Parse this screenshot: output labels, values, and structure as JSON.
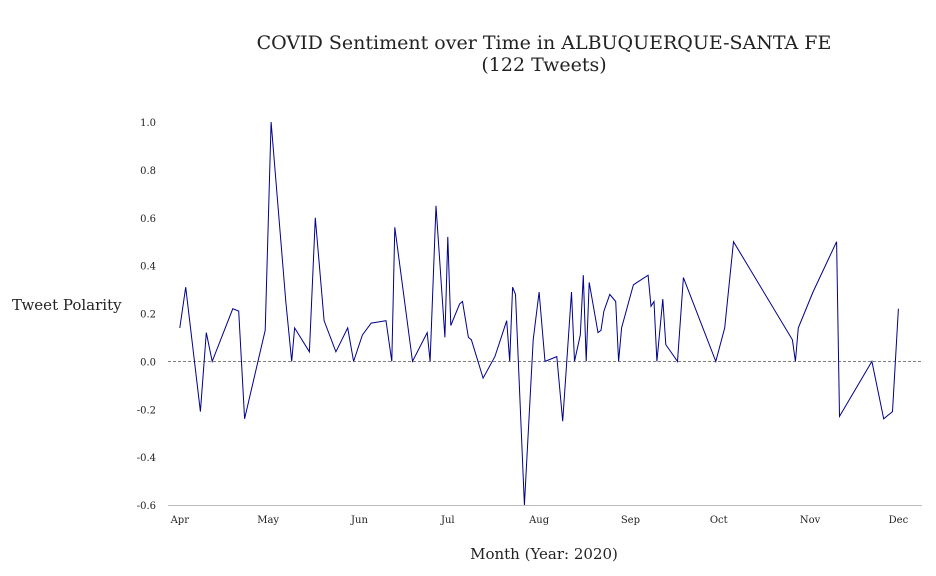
{
  "chart_data": {
    "type": "line",
    "title_line1": "COVID Sentiment over Time in ALBUQUERQUE-SANTA FE",
    "title_line2": "(122 Tweets)",
    "xlabel": "Month (Year: 2020)",
    "ylabel": "Tweet Polarity",
    "ylim": [
      -0.6,
      1.0
    ],
    "yticks": [
      "-0.6",
      "-0.4",
      "-0.2",
      "0.0",
      "0.2",
      "0.4",
      "0.6",
      "0.8",
      "1.0"
    ],
    "xticks": [
      "Apr",
      "May",
      "Jun",
      "Jul",
      "Aug",
      "Sep",
      "Oct",
      "Nov",
      "Dec"
    ],
    "xlim": [
      "2020-03-28",
      "2020-12-09"
    ],
    "zero_line": true,
    "line_color": "#00008b",
    "series": [
      {
        "points": [
          [
            "2020-04-01",
            0.14
          ],
          [
            "2020-04-03",
            0.31
          ],
          [
            "2020-04-08",
            -0.21
          ],
          [
            "2020-04-10",
            0.12
          ],
          [
            "2020-04-12",
            0.0
          ],
          [
            "2020-04-19",
            0.22
          ],
          [
            "2020-04-21",
            0.21
          ],
          [
            "2020-04-23",
            -0.24
          ],
          [
            "2020-04-30",
            0.13
          ],
          [
            "2020-05-02",
            1.0
          ],
          [
            "2020-05-07",
            0.25
          ],
          [
            "2020-05-09",
            0.0
          ],
          [
            "2020-05-10",
            0.14
          ],
          [
            "2020-05-15",
            0.04
          ],
          [
            "2020-05-17",
            0.6
          ],
          [
            "2020-05-20",
            0.17
          ],
          [
            "2020-05-24",
            0.04
          ],
          [
            "2020-05-28",
            0.14
          ],
          [
            "2020-05-30",
            0.0
          ],
          [
            "2020-06-02",
            0.11
          ],
          [
            "2020-06-05",
            0.16
          ],
          [
            "2020-06-10",
            0.17
          ],
          [
            "2020-06-12",
            0.0
          ],
          [
            "2020-06-13",
            0.56
          ],
          [
            "2020-06-19",
            0.0
          ],
          [
            "2020-06-24",
            0.12
          ],
          [
            "2020-06-25",
            0.0
          ],
          [
            "2020-06-27",
            0.65
          ],
          [
            "2020-06-30",
            0.1
          ],
          [
            "2020-07-01",
            0.52
          ],
          [
            "2020-07-02",
            0.15
          ],
          [
            "2020-07-05",
            0.24
          ],
          [
            "2020-07-06",
            0.25
          ],
          [
            "2020-07-08",
            0.1
          ],
          [
            "2020-07-09",
            0.09
          ],
          [
            "2020-07-13",
            -0.07
          ],
          [
            "2020-07-17",
            0.02
          ],
          [
            "2020-07-21",
            0.17
          ],
          [
            "2020-07-22",
            0.0
          ],
          [
            "2020-07-23",
            0.31
          ],
          [
            "2020-07-24",
            0.28
          ],
          [
            "2020-07-27",
            -0.6
          ],
          [
            "2020-07-30",
            0.09
          ],
          [
            "2020-08-01",
            0.29
          ],
          [
            "2020-08-03",
            0.0
          ],
          [
            "2020-08-07",
            0.02
          ],
          [
            "2020-08-09",
            -0.25
          ],
          [
            "2020-08-12",
            0.29
          ],
          [
            "2020-08-13",
            0.0
          ],
          [
            "2020-08-15",
            0.11
          ],
          [
            "2020-08-16",
            0.36
          ],
          [
            "2020-08-17",
            0.0
          ],
          [
            "2020-08-18",
            0.33
          ],
          [
            "2020-08-21",
            0.12
          ],
          [
            "2020-08-22",
            0.13
          ],
          [
            "2020-08-23",
            0.21
          ],
          [
            "2020-08-25",
            0.28
          ],
          [
            "2020-08-27",
            0.25
          ],
          [
            "2020-08-28",
            0.0
          ],
          [
            "2020-08-29",
            0.14
          ],
          [
            "2020-09-02",
            0.32
          ],
          [
            "2020-09-07",
            0.36
          ],
          [
            "2020-09-08",
            0.23
          ],
          [
            "2020-09-09",
            0.25
          ],
          [
            "2020-09-10",
            0.0
          ],
          [
            "2020-09-12",
            0.26
          ],
          [
            "2020-09-13",
            0.07
          ],
          [
            "2020-09-17",
            0.0
          ],
          [
            "2020-09-19",
            0.35
          ],
          [
            "2020-09-30",
            0.0
          ],
          [
            "2020-10-03",
            0.14
          ],
          [
            "2020-10-06",
            0.5
          ],
          [
            "2020-10-26",
            0.09
          ],
          [
            "2020-10-27",
            0.0
          ],
          [
            "2020-10-28",
            0.14
          ],
          [
            "2020-11-02",
            0.29
          ],
          [
            "2020-11-10",
            0.5
          ],
          [
            "2020-11-11",
            -0.23
          ],
          [
            "2020-11-22",
            0.0
          ],
          [
            "2020-11-26",
            -0.24
          ],
          [
            "2020-11-29",
            -0.21
          ],
          [
            "2020-12-01",
            0.22
          ]
        ]
      }
    ]
  }
}
